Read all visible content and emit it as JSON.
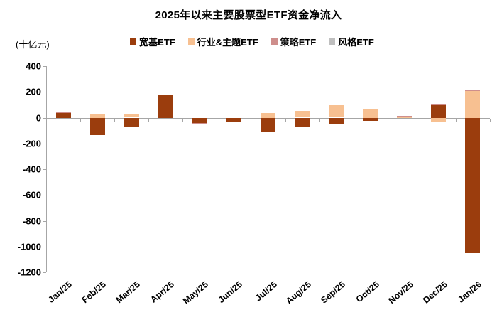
{
  "title": "2025年以来主要股票型ETF资金净流入",
  "unit_label": "(十亿元)",
  "colors": {
    "broad_based": "#9B3D0D",
    "sector_theme": "#F7C091",
    "strategy": "#CE8E8C",
    "style": "#BFBFBF",
    "axis_line": "#A6A6A6",
    "text": "#000000"
  },
  "chart_data": {
    "type": "bar",
    "stacked": true,
    "title": "2025年以来主要股票型ETF资金净流入",
    "ylabel": "(十亿元)",
    "xlabel": "",
    "ylim": [
      -1200,
      400
    ],
    "ytick_step": 200,
    "yticks": [
      400,
      200,
      0,
      -200,
      -400,
      -600,
      -800,
      -1000,
      -1200
    ],
    "grid": false,
    "legend_position": "top",
    "categories": [
      "Jan/25",
      "Feb/25",
      "Mar/25",
      "Apr/25",
      "May/25",
      "Jun/25",
      "Jul/25",
      "Aug/25",
      "Sep/25",
      "Oct/25",
      "Nov/25",
      "Dec/25",
      "Jan/26"
    ],
    "series": [
      {
        "name": "宽基ETF",
        "color": "#9B3D0D",
        "values": [
          35,
          -135,
          -70,
          175,
          -40,
          -30,
          -115,
          -75,
          -52,
          -25,
          0,
          95,
          -1050
        ]
      },
      {
        "name": "行业&主题ETF",
        "color": "#F7C091",
        "values": [
          0,
          25,
          28,
          0,
          0,
          0,
          35,
          52,
          98,
          65,
          10,
          -33,
          205
        ]
      },
      {
        "name": "策略ETF",
        "color": "#CE8E8C",
        "values": [
          5,
          0,
          0,
          0,
          -12,
          0,
          0,
          0,
          0,
          0,
          5,
          12,
          10
        ]
      },
      {
        "name": "风格ETF",
        "color": "#BFBFBF",
        "values": [
          0,
          0,
          0,
          0,
          0,
          0,
          0,
          0,
          0,
          0,
          0,
          0,
          0
        ]
      }
    ]
  }
}
